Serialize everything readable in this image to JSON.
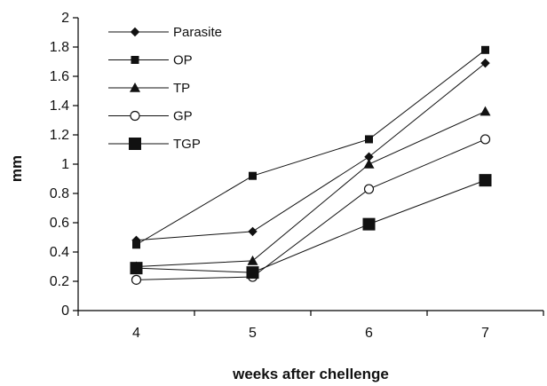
{
  "chart_data": {
    "type": "line",
    "title": "",
    "xlabel": "weeks after chellenge",
    "ylabel": "mm",
    "categories": [
      "4",
      "5",
      "6",
      "7"
    ],
    "ylim": [
      0,
      2
    ],
    "yticks": [
      "0",
      "0.2",
      "0.4",
      "0.6",
      "0.8",
      "1",
      "1.2",
      "1.4",
      "1.6",
      "1.8",
      "2"
    ],
    "grid": false,
    "legend": "top-left",
    "series": [
      {
        "name": "Parasite",
        "marker": "diamond",
        "values": [
          0.48,
          0.54,
          1.05,
          1.69
        ]
      },
      {
        "name": "OP",
        "marker": "square",
        "values": [
          0.45,
          0.92,
          1.17,
          1.78
        ]
      },
      {
        "name": "TP",
        "marker": "triangle",
        "values": [
          0.3,
          0.34,
          1.0,
          1.36
        ]
      },
      {
        "name": "GP",
        "marker": "circle",
        "values": [
          0.21,
          0.23,
          0.83,
          1.17
        ]
      },
      {
        "name": "TGP",
        "marker": "big-square",
        "values": [
          0.29,
          0.26,
          0.59,
          0.89
        ]
      }
    ]
  }
}
